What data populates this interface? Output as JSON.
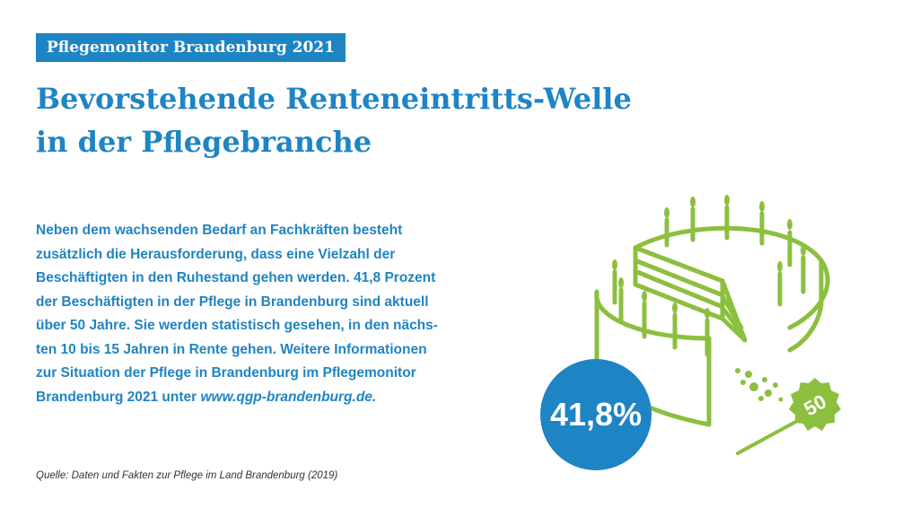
{
  "header": {
    "tag": "Pflegemonitor Brandenburg 2021",
    "title_line1": "Bevorstehende Renteneintritts-Welle",
    "title_line2": "in der Pflegebranche"
  },
  "body": {
    "lines": [
      "Neben dem wachsenden Bedarf an Fachkräften besteht",
      "zusätzlich die Herausforderung, dass eine Vielzahl der",
      "Beschäftigten in den Ruhestand gehen werden. 41,8 Prozent",
      "der Beschäftigten in der Pflege in Brandenburg sind aktuell",
      "über 50 Jahre. Sie werden statistisch gesehen, in den nächs-",
      "ten 10 bis 15 Jahren in Rente gehen. Weitere Informationen",
      "zur Situation der Pflege in Brandenburg im Pflegemonitor"
    ],
    "last_line_text": "Brandenburg 2021 unter ",
    "link": "www.qgp-brandenburg.de."
  },
  "graphic": {
    "percentage": "41,8%",
    "cake_sign": "50",
    "colors": {
      "accent_blue": "#1f84c3",
      "cake_green": "#8cbf3f"
    }
  },
  "footer": {
    "source": "Quelle: Daten und Fakten zur Pflege im Land Brandenburg (2019)"
  }
}
